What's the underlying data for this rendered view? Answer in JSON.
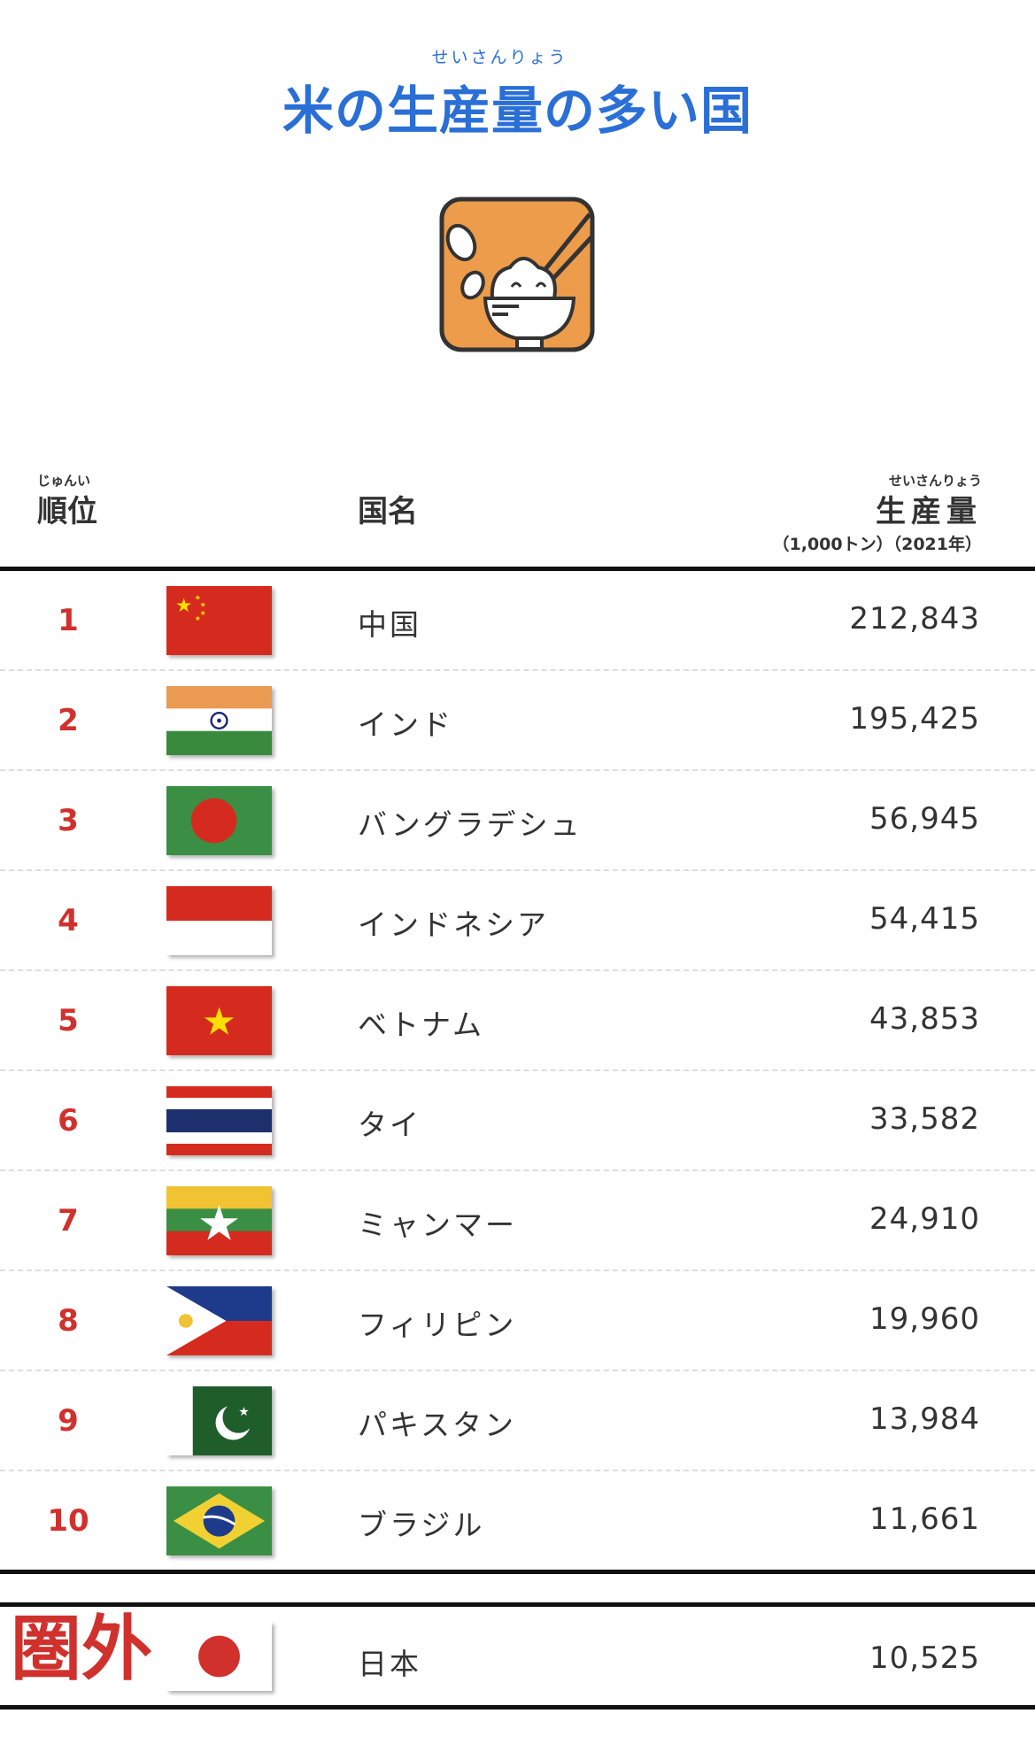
{
  "title": {
    "ruby": "せいさんりょう",
    "text": "米の生産量の多い国"
  },
  "icon": "rice-bowl-icon",
  "header": {
    "rank_ruby": "じゅんい",
    "rank": "順位",
    "country": "国名",
    "production_ruby": "せいさんりょう",
    "production": "生産量",
    "unit": "（1,000トン）（2021年）"
  },
  "rows": [
    {
      "rank": "1",
      "country": "中国",
      "value": "212,843",
      "flag": "china"
    },
    {
      "rank": "2",
      "country": "インド",
      "value": "195,425",
      "flag": "india"
    },
    {
      "rank": "3",
      "country": "バングラデシュ",
      "value": "56,945",
      "flag": "bangladesh"
    },
    {
      "rank": "4",
      "country": "インドネシア",
      "value": "54,415",
      "flag": "indonesia"
    },
    {
      "rank": "5",
      "country": "ベトナム",
      "value": "43,853",
      "flag": "vietnam"
    },
    {
      "rank": "6",
      "country": "タイ",
      "value": "33,582",
      "flag": "thailand"
    },
    {
      "rank": "7",
      "country": "ミャンマー",
      "value": "24,910",
      "flag": "myanmar"
    },
    {
      "rank": "8",
      "country": "フィリピン",
      "value": "19,960",
      "flag": "philippines"
    },
    {
      "rank": "9",
      "country": "パキスタン",
      "value": "13,984",
      "flag": "pakistan"
    },
    {
      "rank": "10",
      "country": "ブラジル",
      "value": "11,661",
      "flag": "brazil"
    }
  ],
  "outside": {
    "label": "圏外",
    "country": "日本",
    "value": "10,525",
    "flag": "japan"
  },
  "colors": {
    "title": "#2a6fd6",
    "rank": "#d0312d",
    "icon_bg": "#ec9c4a"
  }
}
